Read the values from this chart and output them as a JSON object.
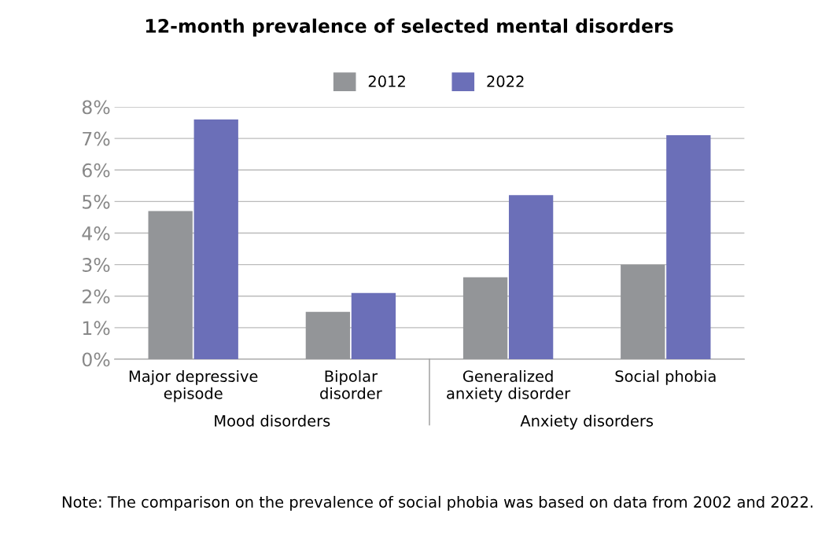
{
  "chart_data": {
    "type": "bar",
    "title": "12-month prevalence of selected mental disorders",
    "categories": [
      "Major depressive\nepisode",
      "Bipolar\ndisorder",
      "Generalized\nanxiety disorder",
      "Social phobia"
    ],
    "series": [
      {
        "name": "2012",
        "color": "#939598",
        "values": [
          4.7,
          1.5,
          2.6,
          3.0
        ]
      },
      {
        "name": "2022",
        "color": "#6b6fb8",
        "values": [
          7.6,
          2.1,
          5.2,
          7.1
        ]
      }
    ],
    "ylim": [
      0,
      8
    ],
    "yticks": [
      {
        "value": 0,
        "label": "0%"
      },
      {
        "value": 1,
        "label": "1%"
      },
      {
        "value": 2,
        "label": "2%"
      },
      {
        "value": 3,
        "label": "3%"
      },
      {
        "value": 4,
        "label": "4%"
      },
      {
        "value": 5,
        "label": "5%"
      },
      {
        "value": 6,
        "label": "6%"
      },
      {
        "value": 7,
        "label": "7%"
      },
      {
        "value": 8,
        "label": "8%"
      }
    ],
    "grid": "y",
    "legend": "top",
    "annotations": [
      "Mood disorders",
      "Anxiety disorders",
      "Note: The comparison on the prevalence of social phobia was based on data from 2002 and 2022."
    ]
  }
}
